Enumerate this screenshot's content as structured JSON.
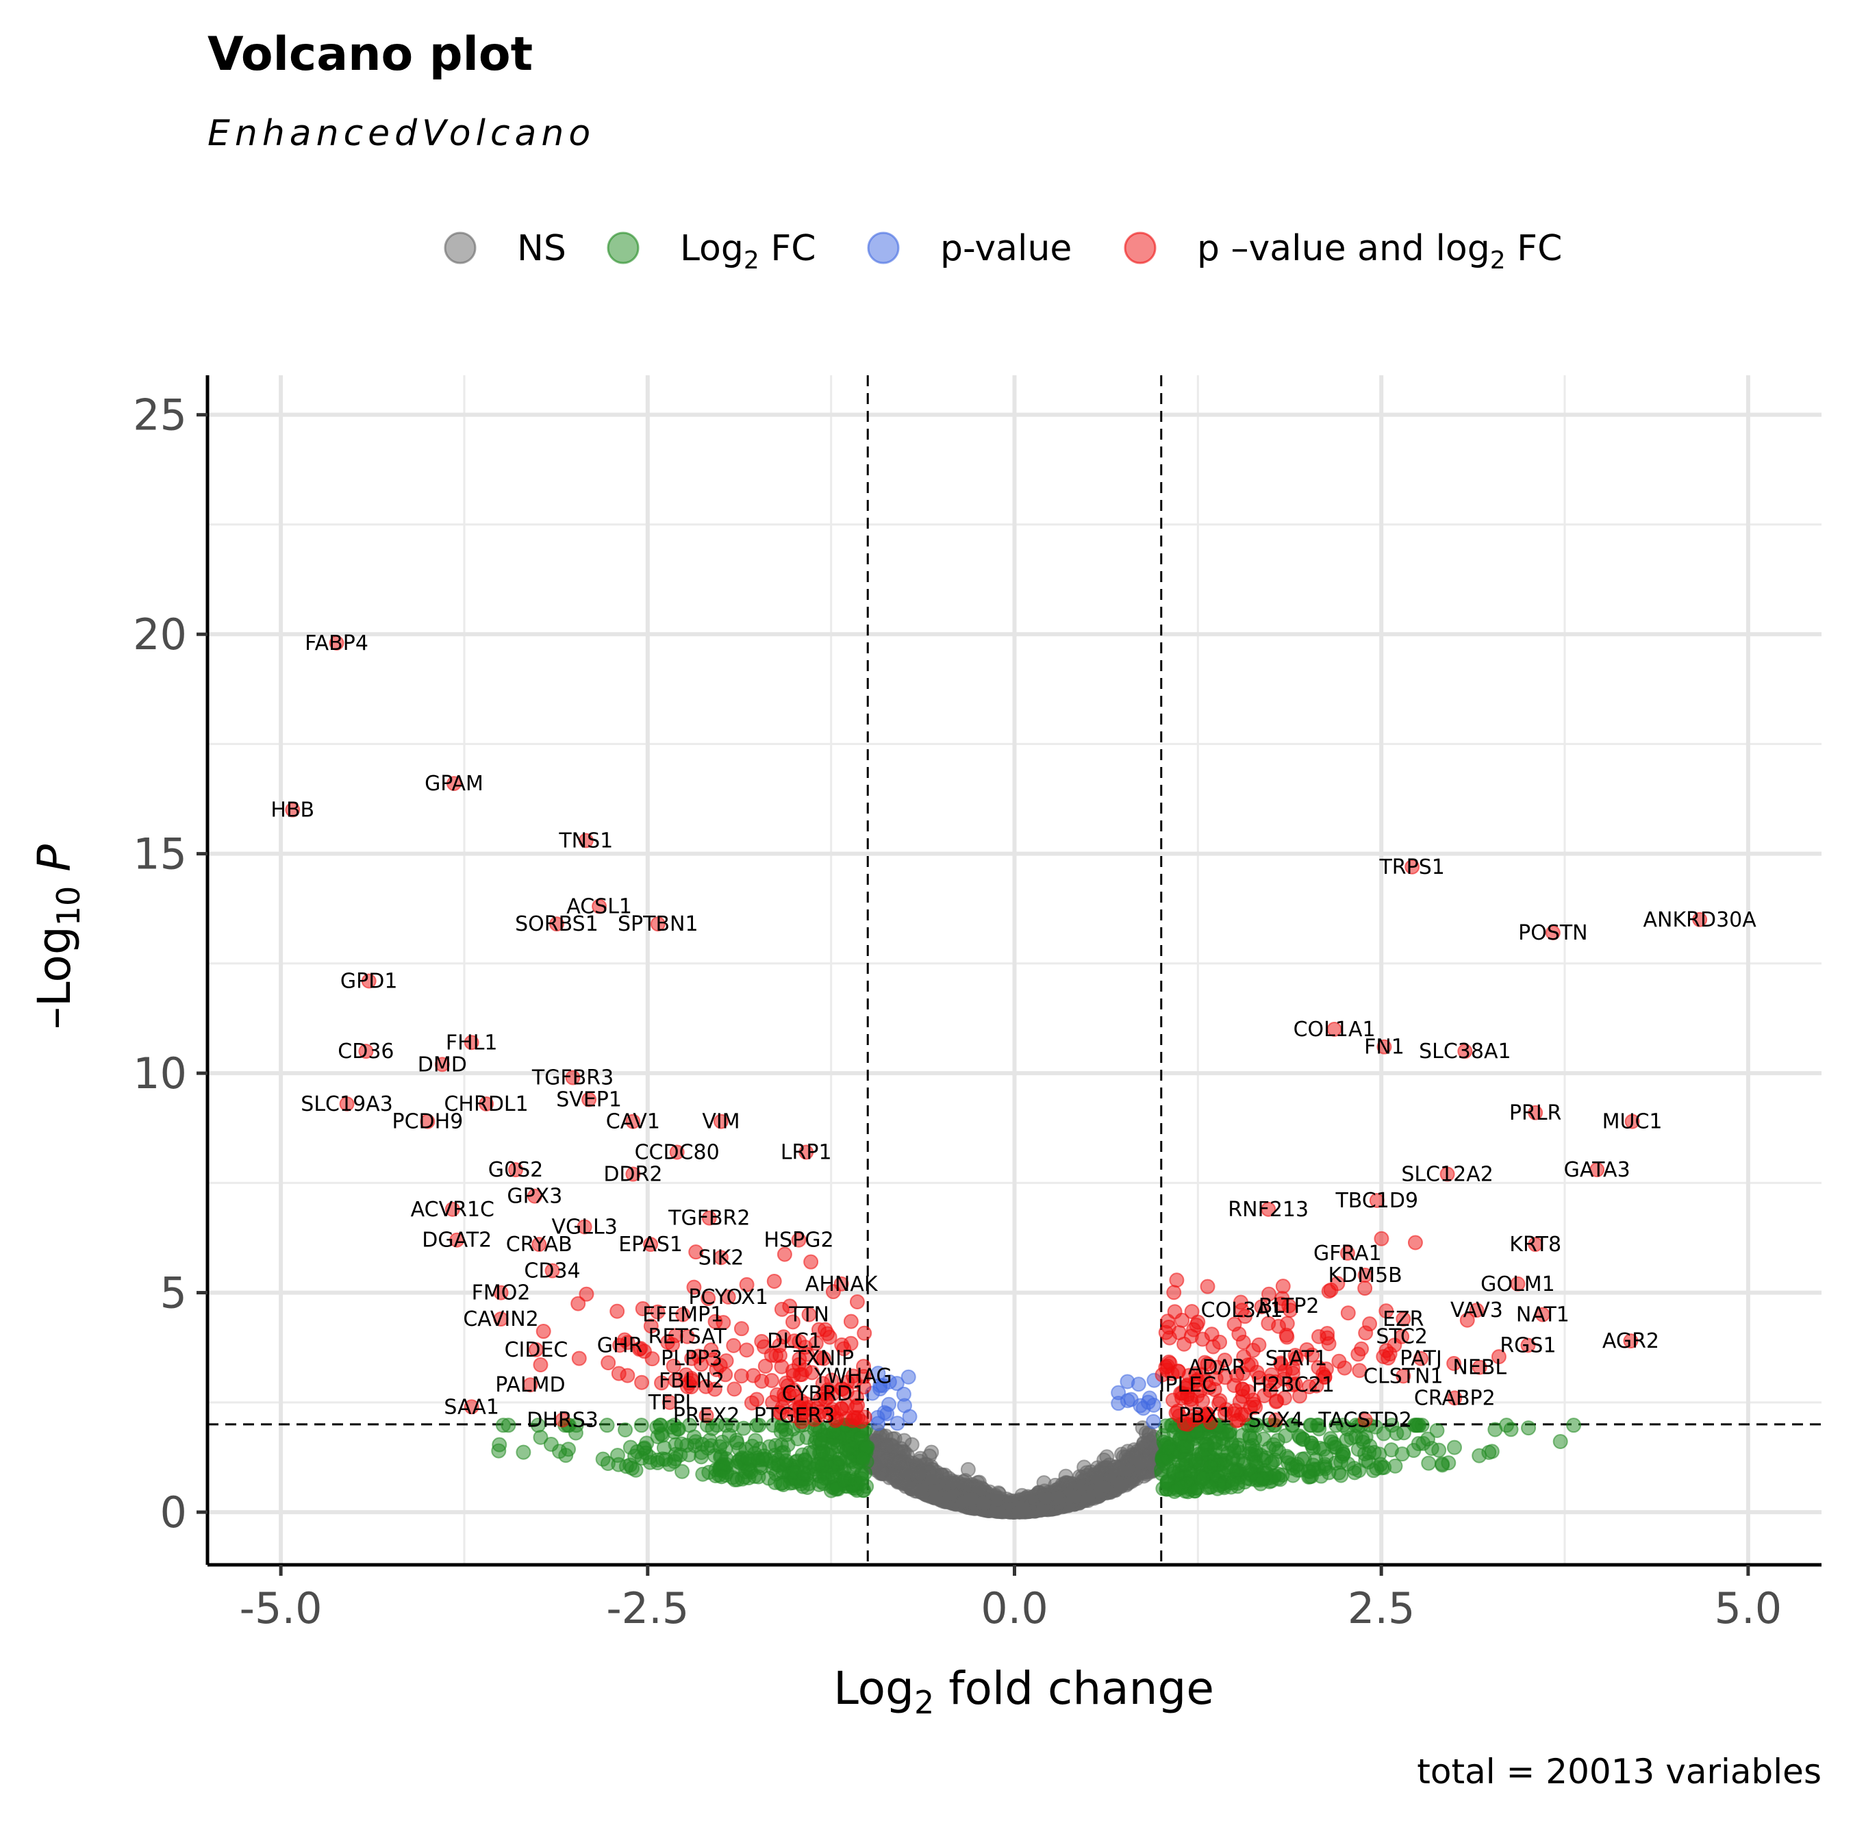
{
  "chart_data": {
    "type": "scatter",
    "title": "Volcano plot",
    "subtitle": "EnhancedVolcano",
    "xlabel": "Log2 fold change",
    "ylabel": "-Log10 P",
    "caption": "total = 20013 variables",
    "xlim": [
      -5.5,
      5.5
    ],
    "ylim": [
      -1.2,
      25.9
    ],
    "x_ticks": [
      "-5.0",
      "-2.5",
      "0.0",
      "2.5",
      "5.0"
    ],
    "x_tick_values": [
      -5,
      -2.5,
      0,
      2.5,
      5
    ],
    "y_ticks": [
      "0",
      "5",
      "10",
      "15",
      "20",
      "25"
    ],
    "y_tick_values": [
      0,
      5,
      10,
      15,
      20,
      25
    ],
    "fc_cutoff": 1,
    "p_cutoff_log10": 2,
    "grid": true,
    "legend_position": "top",
    "legend": [
      {
        "key": "ns",
        "label": "NS",
        "color": "#666666"
      },
      {
        "key": "fc",
        "label": "Log2 FC",
        "color": "#228b22"
      },
      {
        "key": "p",
        "label": "p-value",
        "color": "#4169e1"
      },
      {
        "key": "both",
        "label": "p -value and log2 FC",
        "color": "#ee1111"
      }
    ],
    "labeled_points": [
      {
        "gene": "FABP4",
        "x": -4.62,
        "y": 19.8
      },
      {
        "gene": "GPAM",
        "x": -3.82,
        "y": 16.6
      },
      {
        "gene": "HBB",
        "x": -4.92,
        "y": 16.0
      },
      {
        "gene": "TNS1",
        "x": -2.92,
        "y": 15.3
      },
      {
        "gene": "ACSL1",
        "x": -2.83,
        "y": 13.8
      },
      {
        "gene": "SORBS1",
        "x": -3.12,
        "y": 13.4
      },
      {
        "gene": "SPTBN1",
        "x": -2.43,
        "y": 13.4
      },
      {
        "gene": "GPD1",
        "x": -4.4,
        "y": 12.1
      },
      {
        "gene": "FHL1",
        "x": -3.7,
        "y": 10.7
      },
      {
        "gene": "CD36",
        "x": -4.42,
        "y": 10.5
      },
      {
        "gene": "DMD",
        "x": -3.9,
        "y": 10.2
      },
      {
        "gene": "TGFBR3",
        "x": -3.01,
        "y": 9.9
      },
      {
        "gene": "SVEP1",
        "x": -2.9,
        "y": 9.4
      },
      {
        "gene": "SLC19A3",
        "x": -4.55,
        "y": 9.3
      },
      {
        "gene": "CHRDL1",
        "x": -3.6,
        "y": 9.3
      },
      {
        "gene": "CAV1",
        "x": -2.6,
        "y": 8.9
      },
      {
        "gene": "VIM",
        "x": -2.0,
        "y": 8.9
      },
      {
        "gene": "PCDH9",
        "x": -4.0,
        "y": 8.9
      },
      {
        "gene": "CCDC80",
        "x": -2.3,
        "y": 8.2
      },
      {
        "gene": "LRP1",
        "x": -1.42,
        "y": 8.2
      },
      {
        "gene": "G0S2",
        "x": -3.4,
        "y": 7.8
      },
      {
        "gene": "DDR2",
        "x": -2.6,
        "y": 7.7
      },
      {
        "gene": "GPX3",
        "x": -3.27,
        "y": 7.2
      },
      {
        "gene": "ACVR1C",
        "x": -3.83,
        "y": 6.9
      },
      {
        "gene": "TGFBR2",
        "x": -2.08,
        "y": 6.7
      },
      {
        "gene": "VGLL3",
        "x": -2.93,
        "y": 6.5
      },
      {
        "gene": "DGAT2",
        "x": -3.8,
        "y": 6.2
      },
      {
        "gene": "CRYAB",
        "x": -3.24,
        "y": 6.1
      },
      {
        "gene": "EPAS1",
        "x": -2.48,
        "y": 6.1
      },
      {
        "gene": "HSPG2",
        "x": -1.47,
        "y": 6.2
      },
      {
        "gene": "SIK2",
        "x": -2.0,
        "y": 5.8
      },
      {
        "gene": "CD34",
        "x": -3.15,
        "y": 5.5
      },
      {
        "gene": "AHNAK",
        "x": -1.18,
        "y": 5.2
      },
      {
        "gene": "PCYOX1",
        "x": -1.95,
        "y": 4.9
      },
      {
        "gene": "FMO2",
        "x": -3.5,
        "y": 5.0
      },
      {
        "gene": "EFEMP1",
        "x": -2.26,
        "y": 4.5
      },
      {
        "gene": "CAVIN2",
        "x": -3.5,
        "y": 4.4
      },
      {
        "gene": "TTN",
        "x": -1.4,
        "y": 4.5
      },
      {
        "gene": "RETSAT",
        "x": -2.23,
        "y": 4.0
      },
      {
        "gene": "DLC1",
        "x": -1.5,
        "y": 3.9
      },
      {
        "gene": "CIDEC",
        "x": -3.26,
        "y": 3.7
      },
      {
        "gene": "GHR",
        "x": -2.69,
        "y": 3.8
      },
      {
        "gene": "PLPP3",
        "x": -2.2,
        "y": 3.5
      },
      {
        "gene": "TXNIP",
        "x": -1.3,
        "y": 3.5
      },
      {
        "gene": "YWHAG",
        "x": -1.1,
        "y": 3.1
      },
      {
        "gene": "FBLN2",
        "x": -2.2,
        "y": 3.0
      },
      {
        "gene": "PALMD",
        "x": -3.3,
        "y": 2.9
      },
      {
        "gene": "CYBRD1",
        "x": -1.3,
        "y": 2.7
      },
      {
        "gene": "SAA1",
        "x": -3.7,
        "y": 2.4
      },
      {
        "gene": "TFPI",
        "x": -2.35,
        "y": 2.5
      },
      {
        "gene": "PREX2",
        "x": -2.1,
        "y": 2.2
      },
      {
        "gene": "PTGER3",
        "x": -1.5,
        "y": 2.2
      },
      {
        "gene": "DHRS3",
        "x": -3.08,
        "y": 2.1
      },
      {
        "gene": "TRPS1",
        "x": 2.71,
        "y": 14.7
      },
      {
        "gene": "ANKRD30A",
        "x": 4.67,
        "y": 13.5
      },
      {
        "gene": "POSTN",
        "x": 3.67,
        "y": 13.2
      },
      {
        "gene": "COL1A1",
        "x": 2.18,
        "y": 11.0
      },
      {
        "gene": "FN1",
        "x": 2.52,
        "y": 10.6
      },
      {
        "gene": "SLC38A1",
        "x": 3.07,
        "y": 10.5
      },
      {
        "gene": "PRLR",
        "x": 3.55,
        "y": 9.1
      },
      {
        "gene": "MUC1",
        "x": 4.21,
        "y": 8.9
      },
      {
        "gene": "SLC12A2",
        "x": 2.95,
        "y": 7.7
      },
      {
        "gene": "GATA3",
        "x": 3.97,
        "y": 7.8
      },
      {
        "gene": "TBC1D9",
        "x": 2.47,
        "y": 7.1
      },
      {
        "gene": "RNF213",
        "x": 1.73,
        "y": 6.9
      },
      {
        "gene": "KRT8",
        "x": 3.55,
        "y": 6.1
      },
      {
        "gene": "GFRA1",
        "x": 2.27,
        "y": 5.9
      },
      {
        "gene": "KDM5B",
        "x": 2.39,
        "y": 5.4
      },
      {
        "gene": "GOLM1",
        "x": 3.43,
        "y": 5.2
      },
      {
        "gene": "COL3A1",
        "x": 1.55,
        "y": 4.6
      },
      {
        "gene": "BLTP2",
        "x": 1.87,
        "y": 4.7
      },
      {
        "gene": "EZR",
        "x": 2.65,
        "y": 4.4
      },
      {
        "gene": "VAV3",
        "x": 3.15,
        "y": 4.6
      },
      {
        "gene": "NAT1",
        "x": 3.6,
        "y": 4.5
      },
      {
        "gene": "STC2",
        "x": 2.64,
        "y": 4.0
      },
      {
        "gene": "RGS1",
        "x": 3.5,
        "y": 3.8
      },
      {
        "gene": "AGR2",
        "x": 4.2,
        "y": 3.9
      },
      {
        "gene": "STAT1",
        "x": 1.92,
        "y": 3.5
      },
      {
        "gene": "PATJ",
        "x": 2.77,
        "y": 3.5
      },
      {
        "gene": "ADAR",
        "x": 1.38,
        "y": 3.3
      },
      {
        "gene": "NEBL",
        "x": 3.17,
        "y": 3.3
      },
      {
        "gene": "CLSTN1",
        "x": 2.65,
        "y": 3.1
      },
      {
        "gene": "H2BC21",
        "x": 1.9,
        "y": 2.9
      },
      {
        "gene": "IPLEC",
        "x": 1.18,
        "y": 2.9
      },
      {
        "gene": "CRABP2",
        "x": 3.0,
        "y": 2.6
      },
      {
        "gene": "PBX1",
        "x": 1.3,
        "y": 2.2
      },
      {
        "gene": "SOX4",
        "x": 1.78,
        "y": 2.1
      },
      {
        "gene": "TACSTD2",
        "x": 2.39,
        "y": 2.1
      }
    ],
    "unlabeled_points_summary": "dense cloud of ~20000 genes forming a V shape; grey NS near origin, green beyond |log2FC|>1 below p cutoff, blue above p cutoff within |log2FC|<1, red above both cutoffs"
  }
}
